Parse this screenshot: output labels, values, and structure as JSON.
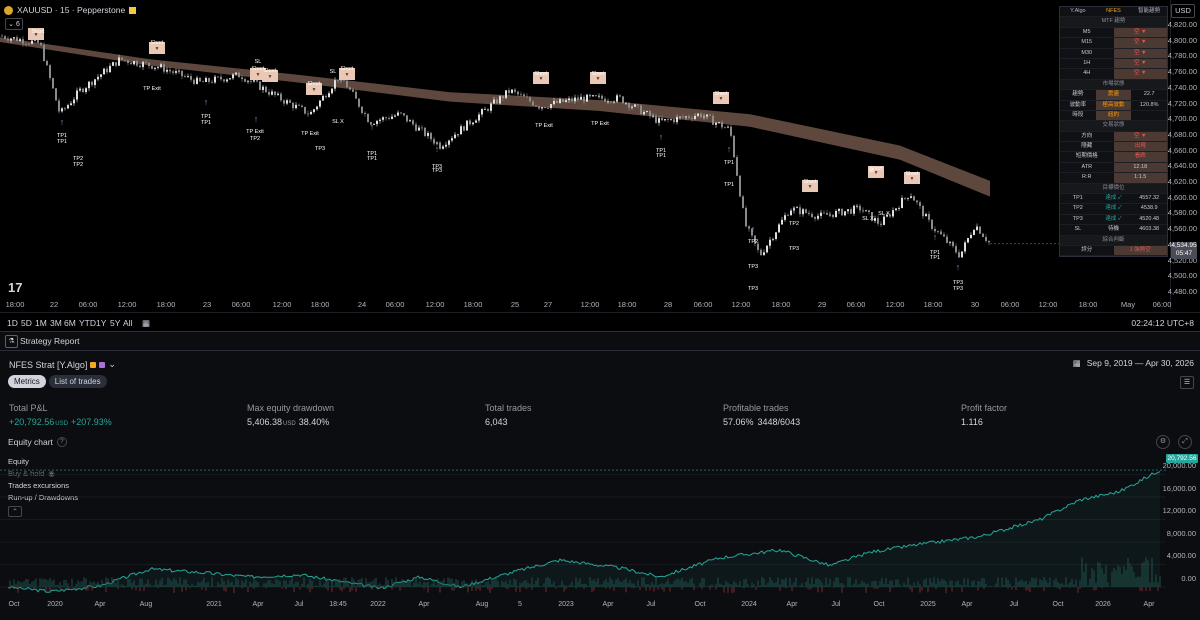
{
  "symbol": {
    "title": "XAUUSD · 15 · Pepperstone",
    "indicator_count": "6",
    "currency": "USD"
  },
  "chart": {
    "price_labels": [
      "4,820.00",
      "4,800.00",
      "4,780.00",
      "4,760.00",
      "4,740.00",
      "4,720.00",
      "4,700.00",
      "4,680.00",
      "4,660.00",
      "4,640.00",
      "4,620.00",
      "4,600.00",
      "4,580.00",
      "4,560.00",
      "4,540.00",
      "4,520.00",
      "4,500.00",
      "4,480.00"
    ],
    "last_price": "4,534.95",
    "countdown": "05:47",
    "time_labels": [
      "18:00",
      "22",
      "06:00",
      "12:00",
      "18:00",
      "23",
      "06:00",
      "12:00",
      "18:00",
      "24",
      "06:00",
      "12:00",
      "18:00",
      "25",
      "27",
      "12:00",
      "18:00",
      "28",
      "06:00",
      "12:00",
      "18:00",
      "29",
      "06:00",
      "12:00",
      "18:00",
      "30",
      "06:00",
      "12:00",
      "18:00",
      "May",
      "06:00"
    ],
    "trade_labels": [
      "TP1",
      "TP1",
      "TP2",
      "TP2",
      "TP Exit",
      "TP1",
      "TP1",
      "TP2",
      "TP Exit",
      "TP3",
      "TP Exit",
      "TP1",
      "TP1",
      "TP3",
      "TP3",
      "TP Exit",
      "TP Exit",
      "TP1",
      "TP1",
      "TP1",
      "TP1",
      "TP2",
      "TP3",
      "TP3",
      "TP2",
      "TP3",
      "TP1",
      "TP1",
      "TP3",
      "TP3",
      "SL",
      "SL",
      "SL",
      "SL X",
      "SL X",
      "SL X",
      "Short",
      "Short",
      "Short",
      "Short",
      "Short",
      "Short",
      "Short",
      "Short",
      "Short",
      "Short",
      "Short",
      "Short"
    ]
  },
  "range_bar": {
    "buttons": [
      "1D",
      "5D",
      "1M",
      "3M",
      "6M",
      "YTD",
      "1Y",
      "5Y",
      "All"
    ],
    "clock": "02:24:12 UTC+8"
  },
  "info_table": {
    "header": [
      "Y.Algo",
      "NFES",
      "智能趨勢"
    ],
    "mtf_title": "MTF 趨勢",
    "mtf_rows": [
      [
        "M5",
        "空 ▼"
      ],
      [
        "M15",
        "空 ▼"
      ],
      [
        "M30",
        "空 ▼"
      ],
      [
        "1H",
        "空 ▼"
      ],
      [
        "4H",
        "空 ▼"
      ]
    ],
    "market_title": "市場狀態",
    "market_rows": [
      [
        "趨勢",
        "震盪",
        "22.7"
      ],
      [
        "波動率",
        "極高波動",
        "120.8%"
      ],
      [
        "時段",
        "紐約",
        ""
      ]
    ],
    "trade_title": "交易狀態",
    "trade_rows": [
      [
        "方向",
        "空 ▼"
      ],
      [
        "隱藏",
        "出現"
      ],
      [
        "短期價格",
        "看跌"
      ],
      [
        "ATR",
        "12.18"
      ],
      [
        "R:R",
        "1:1.5"
      ]
    ],
    "tp_title": "目標價位",
    "tp_rows": [
      [
        "TP1",
        "達成 ✓",
        "4557.32"
      ],
      [
        "TP2",
        "達成 ✓",
        "4538.9"
      ],
      [
        "TP3",
        "達成 ✓",
        "4520.48"
      ],
      [
        "SL",
        "待機",
        "4603.38"
      ]
    ],
    "score_title": "綜合判斷",
    "score_row": [
      "評分",
      "1 強勢空",
      ""
    ]
  },
  "report": {
    "title": "Strategy Report",
    "strategy_name": "NFES Strat [Y.Algo]",
    "date_range": "Sep 9, 2019 — Apr 30, 2026",
    "tabs": [
      "Metrics",
      "List of trades"
    ],
    "metrics": [
      {
        "label": "Total P&L",
        "value": "+20,792.56",
        "unit": "USD",
        "extra": "+207.93%"
      },
      {
        "label": "Max equity drawdown",
        "value": "5,406.38",
        "unit": "USD",
        "extra": "38.40%"
      },
      {
        "label": "Total trades",
        "value": "6,043",
        "unit": "",
        "extra": ""
      },
      {
        "label": "Profitable trades",
        "value": "57.06%",
        "unit": "",
        "extra": "3448/6043"
      },
      {
        "label": "Profit factor",
        "value": "1.116",
        "unit": "",
        "extra": ""
      }
    ],
    "equity_chart_title": "Equity chart",
    "legend": [
      "Equity",
      "Buy & hold",
      "Trades excursions",
      "Run-up / Drawdowns"
    ],
    "equity_axis": [
      "20,000.00",
      "16,000.00",
      "12,000.00",
      "8,000.00",
      "4,000.00",
      "0.00"
    ],
    "equity_last": "20,792.56",
    "x_labels": [
      "Oct",
      "2020",
      "Apr",
      "Aug",
      "2021",
      "Apr",
      "Jul",
      "18:45",
      "2022",
      "Apr",
      "Aug",
      "5",
      "2023",
      "Apr",
      "Jul",
      "Oct",
      "2024",
      "Apr",
      "Jul",
      "Oct",
      "2025",
      "Apr",
      "Jul",
      "Oct",
      "2026",
      "Apr"
    ]
  },
  "colors": {
    "bg": "#000000",
    "panel": "#0c0d10",
    "ema_band": "#6e5549",
    "equity": "#26a69a",
    "drawdown": "#ef5350",
    "accent": "#f5a623"
  }
}
